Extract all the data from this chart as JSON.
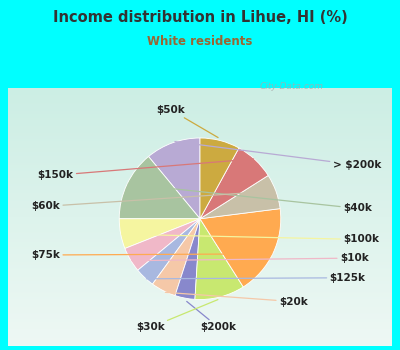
{
  "title": "Income distribution in Lihue, HI (%)",
  "subtitle": "White residents",
  "title_color": "#333333",
  "subtitle_color": "#996633",
  "background_outer": "#00ffff",
  "watermark": "City-Data.com",
  "labels": [
    "> $200k",
    "$40k",
    "$100k",
    "$10k",
    "$125k",
    "$20k",
    "$200k",
    "$30k",
    "$75k",
    "$60k",
    "$150k",
    "$50k"
  ],
  "values": [
    11,
    14,
    6,
    5,
    4,
    5,
    4,
    10,
    18,
    7,
    8,
    8
  ],
  "colors": [
    "#b8aad4",
    "#a8c4a0",
    "#f5f5a0",
    "#f0b8c8",
    "#a8b8e0",
    "#f5c8a8",
    "#8888cc",
    "#c8e870",
    "#ffaa50",
    "#c8c0a8",
    "#d87878",
    "#ccaa40"
  ],
  "label_fontsize": 7.5,
  "startangle": 90,
  "label_positions": {
    "> $200k": [
      1.28,
      0.52,
      "left"
    ],
    "$40k": [
      1.38,
      0.1,
      "left"
    ],
    "$100k": [
      1.38,
      -0.2,
      "left"
    ],
    "$10k": [
      1.35,
      -0.38,
      "left"
    ],
    "$125k": [
      1.25,
      -0.57,
      "left"
    ],
    "$20k": [
      0.9,
      -0.8,
      "center"
    ],
    "$200k": [
      0.18,
      -1.05,
      "center"
    ],
    "$30k": [
      -0.48,
      -1.05,
      "center"
    ],
    "$75k": [
      -1.35,
      -0.35,
      "right"
    ],
    "$60k": [
      -1.35,
      0.12,
      "right"
    ],
    "$150k": [
      -1.22,
      0.42,
      "right"
    ],
    "$50k": [
      -0.28,
      1.05,
      "center"
    ]
  },
  "inner_gradient_top": "#cceee4",
  "inner_gradient_bottom": "#eef8f4"
}
